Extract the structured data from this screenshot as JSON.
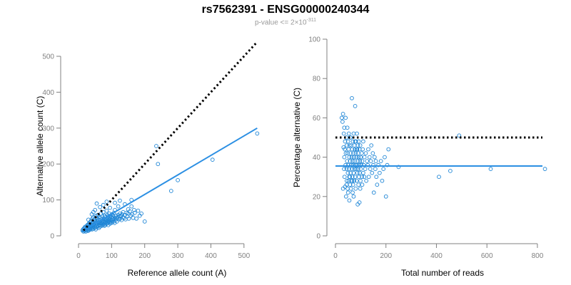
{
  "title": "rs7562391 - ENSG00000240344",
  "subtitle": {
    "prefix": "p-value <= 2×10",
    "exponent": "-311"
  },
  "colors": {
    "points": "#1f86d6",
    "fit_line": "#2b8fe3",
    "reference_line": "#000000",
    "axis": "#808080"
  },
  "chart_data": [
    {
      "type": "scatter",
      "title": "",
      "xlabel": "Reference allele count (A)",
      "ylabel": "Alternative allele count (C)",
      "xlim": [
        0,
        550
      ],
      "ylim": [
        0,
        500
      ],
      "xticks": [
        0,
        100,
        200,
        300,
        400,
        500
      ],
      "yticks": [
        0,
        100,
        200,
        300,
        400,
        500
      ],
      "grid": false,
      "marker": "open-circle",
      "points": [
        [
          12,
          15
        ],
        [
          14,
          18
        ],
        [
          15,
          12
        ],
        [
          16,
          20
        ],
        [
          18,
          14
        ],
        [
          18,
          22
        ],
        [
          20,
          16
        ],
        [
          20,
          25
        ],
        [
          22,
          18
        ],
        [
          22,
          12
        ],
        [
          24,
          20
        ],
        [
          25,
          28
        ],
        [
          25,
          15
        ],
        [
          26,
          22
        ],
        [
          27,
          30
        ],
        [
          28,
          18
        ],
        [
          28,
          25
        ],
        [
          29,
          14
        ],
        [
          30,
          32
        ],
        [
          30,
          20
        ],
        [
          31,
          26
        ],
        [
          32,
          16
        ],
        [
          32,
          35
        ],
        [
          33,
          22
        ],
        [
          34,
          28
        ],
        [
          35,
          18
        ],
        [
          35,
          38
        ],
        [
          36,
          25
        ],
        [
          37,
          30
        ],
        [
          38,
          20
        ],
        [
          38,
          42
        ],
        [
          39,
          27
        ],
        [
          40,
          22
        ],
        [
          40,
          35
        ],
        [
          41,
          18
        ],
        [
          42,
          30
        ],
        [
          42,
          48
        ],
        [
          43,
          25
        ],
        [
          44,
          38
        ],
        [
          45,
          20
        ],
        [
          45,
          52
        ],
        [
          46,
          30
        ],
        [
          47,
          24
        ],
        [
          48,
          35
        ],
        [
          48,
          45
        ],
        [
          49,
          28
        ],
        [
          50,
          22
        ],
        [
          50,
          40
        ],
        [
          51,
          32
        ],
        [
          52,
          18
        ],
        [
          52,
          55
        ],
        [
          53,
          36
        ],
        [
          54,
          26
        ],
        [
          55,
          42
        ],
        [
          55,
          30
        ],
        [
          56,
          48
        ],
        [
          57,
          24
        ],
        [
          58,
          34
        ],
        [
          58,
          58
        ],
        [
          59,
          40
        ],
        [
          60,
          28
        ],
        [
          60,
          45
        ],
        [
          61,
          35
        ],
        [
          62,
          22
        ],
        [
          62,
          52
        ],
        [
          63,
          38
        ],
        [
          64,
          30
        ],
        [
          65,
          44
        ],
        [
          65,
          26
        ],
        [
          66,
          36
        ],
        [
          67,
          50
        ],
        [
          68,
          32
        ],
        [
          68,
          62
        ],
        [
          69,
          40
        ],
        [
          70,
          28
        ],
        [
          70,
          46
        ],
        [
          71,
          36
        ],
        [
          72,
          54
        ],
        [
          73,
          30
        ],
        [
          74,
          42
        ],
        [
          75,
          38
        ],
        [
          75,
          66
        ],
        [
          76,
          32
        ],
        [
          77,
          48
        ],
        [
          78,
          40
        ],
        [
          78,
          28
        ],
        [
          79,
          56
        ],
        [
          80,
          36
        ],
        [
          80,
          44
        ],
        [
          81,
          30
        ],
        [
          82,
          52
        ],
        [
          83,
          38
        ],
        [
          84,
          46
        ],
        [
          85,
          34
        ],
        [
          85,
          70
        ],
        [
          86,
          42
        ],
        [
          87,
          58
        ],
        [
          88,
          36
        ],
        [
          88,
          48
        ],
        [
          89,
          40
        ],
        [
          90,
          30
        ],
        [
          90,
          54
        ],
        [
          91,
          44
        ],
        [
          92,
          38
        ],
        [
          93,
          62
        ],
        [
          94,
          46
        ],
        [
          95,
          34
        ],
        [
          95,
          50
        ],
        [
          96,
          40
        ],
        [
          97,
          56
        ],
        [
          98,
          44
        ],
        [
          99,
          36
        ],
        [
          100,
          52
        ],
        [
          100,
          42
        ],
        [
          101,
          60
        ],
        [
          102,
          38
        ],
        [
          103,
          48
        ],
        [
          104,
          44
        ],
        [
          105,
          56
        ],
        [
          106,
          40
        ],
        [
          107,
          64
        ],
        [
          108,
          46
        ],
        [
          109,
          36
        ],
        [
          110,
          50
        ],
        [
          110,
          72
        ],
        [
          112,
          44
        ],
        [
          113,
          56
        ],
        [
          115,
          48
        ],
        [
          116,
          40
        ],
        [
          118,
          52
        ],
        [
          120,
          58
        ],
        [
          120,
          82
        ],
        [
          122,
          46
        ],
        [
          124,
          54
        ],
        [
          125,
          62
        ],
        [
          126,
          48
        ],
        [
          128,
          56
        ],
        [
          130,
          44
        ],
        [
          132,
          60
        ],
        [
          134,
          52
        ],
        [
          135,
          66
        ],
        [
          138,
          50
        ],
        [
          140,
          58
        ],
        [
          142,
          46
        ],
        [
          145,
          64
        ],
        [
          148,
          54
        ],
        [
          150,
          62
        ],
        [
          152,
          48
        ],
        [
          155,
          68
        ],
        [
          158,
          56
        ],
        [
          160,
          82
        ],
        [
          162,
          60
        ],
        [
          165,
          50
        ],
        [
          168,
          72
        ],
        [
          170,
          64
        ],
        [
          175,
          48
        ],
        [
          180,
          70
        ],
        [
          185,
          56
        ],
        [
          190,
          62
        ],
        [
          200,
          40
        ],
        [
          55,
          90
        ],
        [
          65,
          80
        ],
        [
          75,
          86
        ],
        [
          85,
          95
        ],
        [
          95,
          78
        ],
        [
          110,
          92
        ],
        [
          125,
          98
        ],
        [
          140,
          88
        ],
        [
          150,
          74
        ],
        [
          160,
          100
        ],
        [
          235,
          250
        ],
        [
          240,
          200
        ],
        [
          280,
          125
        ],
        [
          300,
          155
        ],
        [
          405,
          212
        ],
        [
          540,
          285
        ],
        [
          30,
          45
        ],
        [
          40,
          60
        ],
        [
          45,
          66
        ],
        [
          50,
          72
        ]
      ],
      "fit_line": {
        "x": [
          10,
          540
        ],
        "y": [
          12,
          300
        ]
      },
      "reference_line": {
        "x": [
          15,
          540
        ],
        "y": [
          15,
          540
        ]
      }
    },
    {
      "type": "scatter",
      "title": "",
      "xlabel": "Total number of reads",
      "ylabel": "Percentage alternative (C)",
      "xlim": [
        0,
        820
      ],
      "ylim": [
        0,
        100
      ],
      "xticks": [
        0,
        200,
        400,
        600,
        800
      ],
      "yticks": [
        0,
        20,
        40,
        60,
        80,
        100
      ],
      "grid": false,
      "marker": "open-circle",
      "points": [
        [
          25,
          60
        ],
        [
          28,
          58
        ],
        [
          30,
          62
        ],
        [
          32,
          45
        ],
        [
          33,
          52
        ],
        [
          35,
          40
        ],
        [
          35,
          55
        ],
        [
          36,
          30
        ],
        [
          38,
          48
        ],
        [
          38,
          25
        ],
        [
          40,
          36
        ],
        [
          40,
          60
        ],
        [
          41,
          42
        ],
        [
          42,
          20
        ],
        [
          43,
          50
        ],
        [
          44,
          34
        ],
        [
          45,
          28
        ],
        [
          45,
          46
        ],
        [
          46,
          38
        ],
        [
          47,
          55
        ],
        [
          48,
          24
        ],
        [
          48,
          42
        ],
        [
          49,
          32
        ],
        [
          50,
          48
        ],
        [
          50,
          22
        ],
        [
          51,
          36
        ],
        [
          52,
          44
        ],
        [
          52,
          28
        ],
        [
          53,
          52
        ],
        [
          54,
          34
        ],
        [
          55,
          40
        ],
        [
          55,
          18
        ],
        [
          56,
          46
        ],
        [
          57,
          30
        ],
        [
          58,
          38
        ],
        [
          58,
          26
        ],
        [
          59,
          50
        ],
        [
          60,
          42
        ],
        [
          60,
          32
        ],
        [
          61,
          24
        ],
        [
          62,
          36
        ],
        [
          62,
          46
        ],
        [
          63,
          28
        ],
        [
          64,
          40
        ],
        [
          65,
          34
        ],
        [
          65,
          70
        ],
        [
          66,
          44
        ],
        [
          67,
          30
        ],
        [
          68,
          38
        ],
        [
          68,
          22
        ],
        [
          69,
          48
        ],
        [
          70,
          36
        ],
        [
          70,
          26
        ],
        [
          71,
          42
        ],
        [
          72,
          32
        ],
        [
          72,
          52
        ],
        [
          73,
          40
        ],
        [
          74,
          28
        ],
        [
          75,
          46
        ],
        [
          75,
          34
        ],
        [
          76,
          38
        ],
        [
          77,
          44
        ],
        [
          78,
          30
        ],
        [
          78,
          66
        ],
        [
          79,
          36
        ],
        [
          80,
          42
        ],
        [
          80,
          24
        ],
        [
          81,
          48
        ],
        [
          82,
          34
        ],
        [
          83,
          40
        ],
        [
          84,
          28
        ],
        [
          85,
          36
        ],
        [
          85,
          52
        ],
        [
          86,
          44
        ],
        [
          87,
          32
        ],
        [
          88,
          38
        ],
        [
          88,
          16
        ],
        [
          89,
          46
        ],
        [
          90,
          34
        ],
        [
          90,
          42
        ],
        [
          91,
          26
        ],
        [
          92,
          40
        ],
        [
          93,
          30
        ],
        [
          94,
          36
        ],
        [
          95,
          44
        ],
        [
          95,
          17
        ],
        [
          96,
          32
        ],
        [
          97,
          38
        ],
        [
          98,
          46
        ],
        [
          99,
          28
        ],
        [
          100,
          40
        ],
        [
          100,
          34
        ],
        [
          102,
          36
        ],
        [
          104,
          42
        ],
        [
          105,
          30
        ],
        [
          106,
          38
        ],
        [
          108,
          44
        ],
        [
          110,
          32
        ],
        [
          110,
          48
        ],
        [
          112,
          36
        ],
        [
          115,
          40
        ],
        [
          118,
          34
        ],
        [
          120,
          42
        ],
        [
          122,
          28
        ],
        [
          125,
          38
        ],
        [
          128,
          36
        ],
        [
          130,
          44
        ],
        [
          132,
          30
        ],
        [
          135,
          40
        ],
        [
          138,
          34
        ],
        [
          140,
          38
        ],
        [
          142,
          46
        ],
        [
          145,
          32
        ],
        [
          148,
          42
        ],
        [
          150,
          36
        ],
        [
          152,
          22
        ],
        [
          155,
          40
        ],
        [
          158,
          34
        ],
        [
          160,
          38
        ],
        [
          162,
          30
        ],
        [
          165,
          26
        ],
        [
          170,
          36
        ],
        [
          175,
          32
        ],
        [
          180,
          38
        ],
        [
          185,
          28
        ],
        [
          190,
          34
        ],
        [
          195,
          40
        ],
        [
          200,
          20
        ],
        [
          205,
          36
        ],
        [
          210,
          44
        ],
        [
          250,
          35
        ],
        [
          410,
          30
        ],
        [
          455,
          33
        ],
        [
          490,
          51
        ],
        [
          615,
          34
        ],
        [
          830,
          34
        ],
        [
          30,
          24
        ],
        [
          34,
          34
        ],
        [
          37,
          44
        ],
        [
          44,
          26
        ],
        [
          55,
          30
        ],
        [
          60,
          50
        ],
        [
          66,
          28
        ],
        [
          72,
          20
        ],
        [
          78,
          48
        ],
        [
          84,
          44
        ],
        [
          92,
          48
        ],
        [
          98,
          24
        ],
        [
          106,
          26
        ],
        [
          114,
          30
        ]
      ],
      "fit_line": {
        "x": [
          0,
          820
        ],
        "y": [
          35.5,
          35.5
        ]
      },
      "reference_line": {
        "x": [
          0,
          820
        ],
        "y": [
          50,
          50
        ]
      }
    }
  ]
}
